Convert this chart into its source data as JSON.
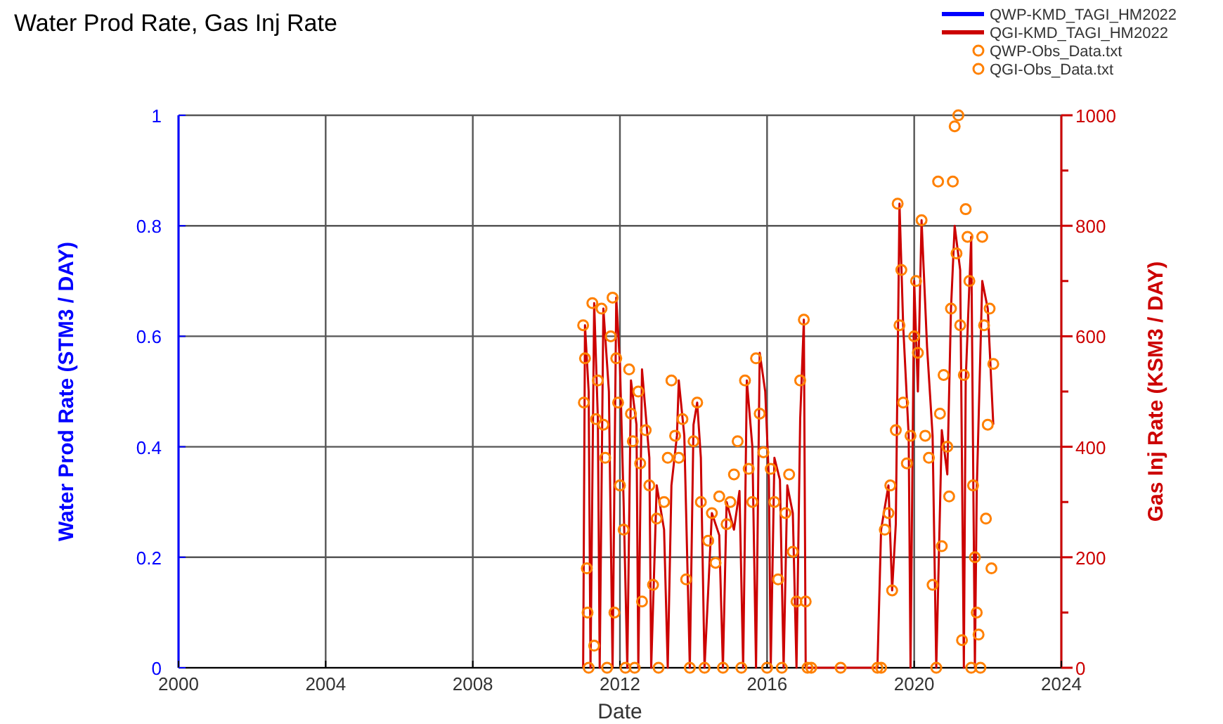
{
  "chart_data": {
    "type": "line",
    "title": "Water Prod Rate, Gas Inj Rate",
    "xlabel": "Date",
    "ylabel": "Water Prod Rate (STM3 / DAY)",
    "y2label": "Gas Inj Rate (KSM3 / DAY)",
    "xlim": [
      2000,
      2024
    ],
    "xticks": [
      2000,
      2004,
      2008,
      2012,
      2016,
      2020,
      2024
    ],
    "ylim": [
      0,
      1
    ],
    "yticks": [
      0,
      0.2,
      0.4,
      0.6,
      0.8,
      1
    ],
    "y2lim": [
      0,
      1000
    ],
    "y2ticks": [
      0,
      {
        "value": 100,
        "label": null
      },
      200,
      {
        "value": 300,
        "label": null
      },
      400,
      {
        "value": 500,
        "label": null
      },
      600,
      {
        "value": 700,
        "label": null
      },
      800,
      {
        "value": 900,
        "label": null
      },
      1000
    ],
    "grid": true,
    "legend": "top right",
    "series": [
      {
        "name": "QWP-KMD_TAGI_HM2022",
        "color": "#0000ff",
        "line_style": "solid"
      },
      {
        "name": "QGI-KMD_TAGI_HM2022",
        "axis": "y2",
        "color": "#cc0000",
        "line_style": "solid",
        "x": [
          2011.0,
          2011.05,
          2011.15,
          2011.2,
          2011.3,
          2011.4,
          2011.45,
          2011.55,
          2011.7,
          2011.8,
          2011.9,
          2012.0,
          2012.1,
          2012.2,
          2012.3,
          2012.45,
          2012.5,
          2012.6,
          2012.8,
          2012.85,
          2013.0,
          2013.2,
          2013.3,
          2013.4,
          2013.55,
          2013.6,
          2013.75,
          2013.9,
          2014.0,
          2014.1,
          2014.2,
          2014.3,
          2014.5,
          2014.7,
          2014.8,
          2014.9,
          2015.1,
          2015.25,
          2015.35,
          2015.45,
          2015.6,
          2015.7,
          2015.8,
          2015.95,
          2016.05,
          2016.1,
          2016.2,
          2016.35,
          2016.45,
          2016.55,
          2016.7,
          2016.8,
          2016.9,
          2017.0,
          2017.05,
          2017.2,
          2019.0,
          2019.1,
          2019.3,
          2019.4,
          2019.5,
          2019.6,
          2019.7,
          2019.85,
          2019.9,
          2020.0,
          2020.1,
          2020.2,
          2020.35,
          2020.5,
          2020.6,
          2020.75,
          2020.9,
          2021.0,
          2021.1,
          2021.25,
          2021.35,
          2021.4,
          2021.55,
          2021.65,
          2021.7,
          2021.85,
          2022.0,
          2022.15
        ],
        "values": [
          0,
          620,
          500,
          0,
          660,
          450,
          0,
          650,
          500,
          0,
          670,
          550,
          300,
          0,
          520,
          440,
          0,
          540,
          380,
          0,
          330,
          250,
          0,
          330,
          420,
          520,
          420,
          0,
          440,
          480,
          380,
          0,
          280,
          240,
          0,
          300,
          250,
          320,
          0,
          520,
          400,
          0,
          570,
          500,
          340,
          0,
          380,
          340,
          0,
          330,
          280,
          0,
          450,
          630,
          0,
          0,
          0,
          250,
          330,
          140,
          260,
          840,
          620,
          420,
          0,
          700,
          500,
          810,
          580,
          420,
          0,
          430,
          350,
          650,
          800,
          720,
          0,
          520,
          780,
          0,
          320,
          700,
          650,
          440
        ]
      },
      {
        "name": "QWP-Obs_Data.txt",
        "type": "scatter",
        "color": "#ff8000",
        "marker": "circle"
      },
      {
        "name": "QGI-Obs_Data.txt",
        "type": "scatter",
        "axis": "y2",
        "color": "#ff8000",
        "marker": "circle",
        "x": [
          2011.0,
          2011.02,
          2011.05,
          2011.1,
          2011.12,
          2011.15,
          2011.25,
          2011.3,
          2011.35,
          2011.4,
          2011.5,
          2011.55,
          2011.6,
          2011.65,
          2011.75,
          2011.8,
          2011.85,
          2011.9,
          2011.95,
          2012.0,
          2012.1,
          2012.15,
          2012.25,
          2012.3,
          2012.35,
          2012.4,
          2012.5,
          2012.55,
          2012.6,
          2012.7,
          2012.8,
          2012.9,
          2013.0,
          2013.05,
          2013.2,
          2013.3,
          2013.4,
          2013.5,
          2013.6,
          2013.7,
          2013.8,
          2013.9,
          2014.0,
          2014.1,
          2014.2,
          2014.3,
          2014.4,
          2014.5,
          2014.6,
          2014.7,
          2014.8,
          2014.9,
          2015.0,
          2015.1,
          2015.2,
          2015.3,
          2015.4,
          2015.5,
          2015.6,
          2015.7,
          2015.8,
          2015.9,
          2016.0,
          2016.1,
          2016.2,
          2016.3,
          2016.4,
          2016.5,
          2016.6,
          2016.7,
          2016.8,
          2016.9,
          2017.0,
          2017.05,
          2017.1,
          2017.2,
          2018.0,
          2019.0,
          2019.1,
          2019.2,
          2019.3,
          2019.35,
          2019.4,
          2019.5,
          2019.55,
          2019.6,
          2019.65,
          2019.7,
          2019.8,
          2019.9,
          2020.0,
          2020.05,
          2020.1,
          2020.2,
          2020.3,
          2020.4,
          2020.5,
          2020.6,
          2020.65,
          2020.7,
          2020.75,
          2020.8,
          2020.9,
          2020.95,
          2021.0,
          2021.05,
          2021.1,
          2021.15,
          2021.2,
          2021.25,
          2021.3,
          2021.35,
          2021.4,
          2021.45,
          2021.5,
          2021.55,
          2021.6,
          2021.65,
          2021.7,
          2021.75,
          2021.8,
          2021.85,
          2021.9,
          2021.95,
          2022.0,
          2022.05,
          2022.1,
          2022.15
        ],
        "values": [
          620,
          480,
          560,
          180,
          100,
          0,
          660,
          40,
          450,
          520,
          650,
          440,
          380,
          0,
          600,
          670,
          100,
          560,
          480,
          330,
          250,
          0,
          540,
          460,
          410,
          0,
          500,
          370,
          120,
          430,
          330,
          150,
          270,
          0,
          300,
          380,
          520,
          420,
          380,
          450,
          160,
          0,
          410,
          480,
          300,
          0,
          230,
          280,
          190,
          310,
          0,
          260,
          300,
          350,
          410,
          0,
          520,
          360,
          300,
          560,
          460,
          390,
          0,
          360,
          300,
          160,
          0,
          280,
          350,
          210,
          120,
          520,
          630,
          120,
          0,
          0,
          0,
          0,
          0,
          250,
          280,
          330,
          140,
          430,
          840,
          620,
          720,
          480,
          370,
          420,
          600,
          700,
          570,
          810,
          420,
          380,
          150,
          0,
          880,
          460,
          220,
          530,
          400,
          310,
          650,
          880,
          980,
          750,
          1000,
          620,
          50,
          530,
          830,
          780,
          700,
          0,
          330,
          200,
          100,
          60,
          0,
          780,
          620,
          270,
          440,
          650,
          180,
          550
        ]
      }
    ]
  }
}
